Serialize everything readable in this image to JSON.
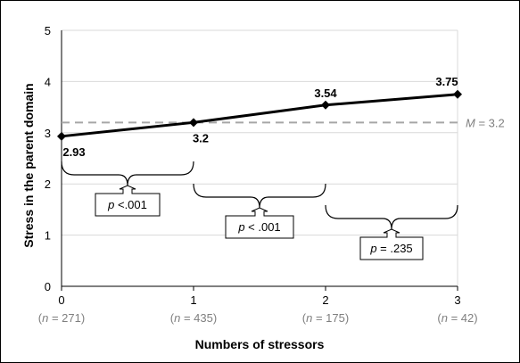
{
  "chart_data": {
    "type": "line",
    "xlabel": "Numbers of stressors",
    "ylabel": "Stress in the parent domain",
    "x": [
      0,
      1,
      2,
      3
    ],
    "x_tick_labels": [
      "0",
      "1",
      "2",
      "3"
    ],
    "n_labels": [
      "(n = 271)",
      "(n = 435)",
      "(n = 175)",
      "(n = 42)"
    ],
    "values": [
      2.93,
      3.2,
      3.54,
      3.75
    ],
    "data_labels": [
      "2.93",
      "3.2",
      "3.54",
      "3.75"
    ],
    "ylim": [
      0,
      5
    ],
    "y_ticks": [
      0,
      1,
      2,
      3,
      4,
      5
    ],
    "grid": true,
    "reference_line": {
      "value": 3.2,
      "label": "M = 3.2"
    },
    "comparisons": [
      {
        "from": 0,
        "to": 1,
        "label": "p <.001"
      },
      {
        "from": 1,
        "to": 2,
        "label": "p < .001"
      },
      {
        "from": 2,
        "to": 3,
        "label": "p = .235"
      }
    ]
  },
  "colors": {
    "line": "#000000",
    "grid": "#d9d9d9",
    "reference": "#a6a6a6",
    "n_text": "#7f7f7f"
  }
}
